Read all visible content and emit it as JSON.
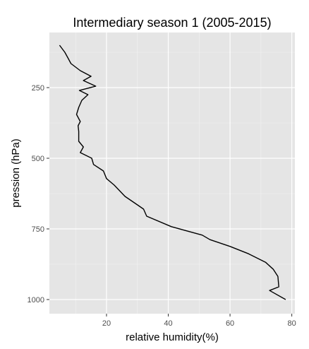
{
  "chart_data": {
    "type": "line",
    "title": "Intermediary season 1 (2005-2015)",
    "xlabel": "relative humidity(%)",
    "ylabel": "pression (hPa)",
    "xlim": [
      1.5,
      81
    ],
    "ylim": [
      1050,
      55
    ],
    "y_reversed": true,
    "grid": true,
    "legend": "none",
    "x_ticks": [
      20,
      40,
      60,
      80
    ],
    "y_ticks": [
      250,
      500,
      750,
      1000
    ],
    "colors": {
      "panel": "#e5e5e5",
      "grid_major": "#ffffff",
      "grid_minor": "#f2f2f2",
      "line": "#000000"
    },
    "series": [
      {
        "x": [
          4.8,
          6.5,
          7.5,
          8.5,
          11.5,
          15,
          12.5,
          16.5,
          11.2,
          14,
          12,
          11,
          10.3,
          11.5,
          10.8,
          11,
          11,
          12.5,
          11.5,
          15.2,
          15.8,
          19,
          20,
          22.5,
          26,
          30,
          32,
          33,
          41,
          51,
          53.5,
          60,
          66,
          71.5,
          74,
          75.5,
          75.8,
          72.8,
          78
        ],
        "y": [
          100,
          125,
          145,
          165,
          190,
          210,
          225,
          245,
          260,
          275,
          295,
          320,
          345,
          370,
          385,
          405,
          440,
          460,
          480,
          500,
          522,
          545,
          572,
          595,
          635,
          665,
          680,
          705,
          742,
          772,
          788,
          812,
          838,
          868,
          893,
          918,
          955,
          968,
          1000
        ]
      }
    ]
  }
}
